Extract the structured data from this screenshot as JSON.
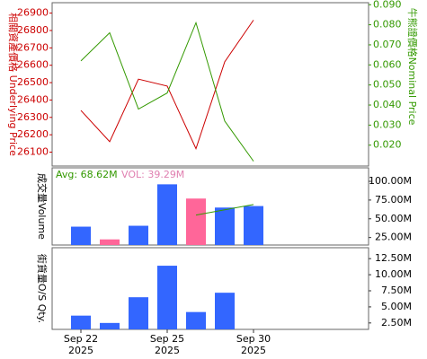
{
  "chart_data": [
    {
      "type": "line",
      "ylabel": "相關資產價格 Underlying Price",
      "y2label": "牛熊證價格Nominal Price",
      "series": [
        {
          "color": "#cc0000",
          "values": [
            26340,
            26160,
            26520,
            26480,
            26120,
            26620,
            26860
          ]
        },
        {
          "color": "#339900",
          "axis": "y2",
          "values": [
            0.062,
            0.076,
            0.038,
            0.046,
            0.081,
            0.032,
            0.012
          ]
        }
      ],
      "ylim": [
        26020,
        26960
      ],
      "yticks": [
        26100,
        26200,
        26300,
        26400,
        26500,
        26600,
        26700,
        26800,
        26900
      ],
      "y2lim": [
        0.0096,
        0.091
      ],
      "y2ticks": [
        {
          "value": 0.02,
          "label": "0.020"
        },
        {
          "value": 0.03,
          "label": "0.030"
        },
        {
          "value": 0.04,
          "label": "0.040"
        },
        {
          "value": 0.05,
          "label": "0.050"
        },
        {
          "value": 0.06,
          "label": "0.060"
        },
        {
          "value": 0.07,
          "label": "0.070"
        },
        {
          "value": 0.08,
          "label": "0.080"
        },
        {
          "value": 0.09,
          "label": "0.090"
        }
      ]
    },
    {
      "type": "bar",
      "ylabel": "成交量Volume",
      "avg_label": "Avg: 68.62M",
      "vol_label": "VOL: 39.29M",
      "values": [
        39500000,
        22500000,
        40700000,
        96000000,
        77000000,
        65000000,
        67000000
      ],
      "colors": [
        "#3366ff",
        "#ff6699",
        "#3366ff",
        "#3366ff",
        "#ff6699",
        "#3366ff",
        "#3366ff"
      ],
      "average_line": {
        "color": "#339900",
        "values": [
          null,
          null,
          null,
          null,
          55000000,
          62000000,
          69000000
        ]
      },
      "ylim": [
        15000000,
        118000000
      ],
      "yticks": [
        {
          "value": 25000000,
          "label": "25.00M"
        },
        {
          "value": 50000000,
          "label": "50.00M"
        },
        {
          "value": 75000000,
          "label": "75.00M"
        },
        {
          "value": 100000000,
          "label": "100.00M"
        }
      ]
    },
    {
      "type": "bar",
      "ylabel": "街貨量O/S Qty.",
      "categories": [
        "Sep 22",
        null,
        null,
        "Sep 25",
        null,
        null,
        "Sep 30"
      ],
      "category_years": [
        "2025",
        null,
        null,
        "2025",
        null,
        null,
        "2025"
      ],
      "values": [
        3640000,
        2500000,
        6500000,
        11400000,
        4200000,
        7200000,
        null
      ],
      "color": "#3366ff",
      "ylim": [
        1500000,
        14200000
      ],
      "yticks": [
        {
          "value": 2500000,
          "label": "2.50M"
        },
        {
          "value": 5000000,
          "label": "5.00M"
        },
        {
          "value": 7500000,
          "label": "7.50M"
        },
        {
          "value": 10000000,
          "label": "10.00M"
        },
        {
          "value": 12500000,
          "label": "12.50M"
        }
      ]
    }
  ]
}
